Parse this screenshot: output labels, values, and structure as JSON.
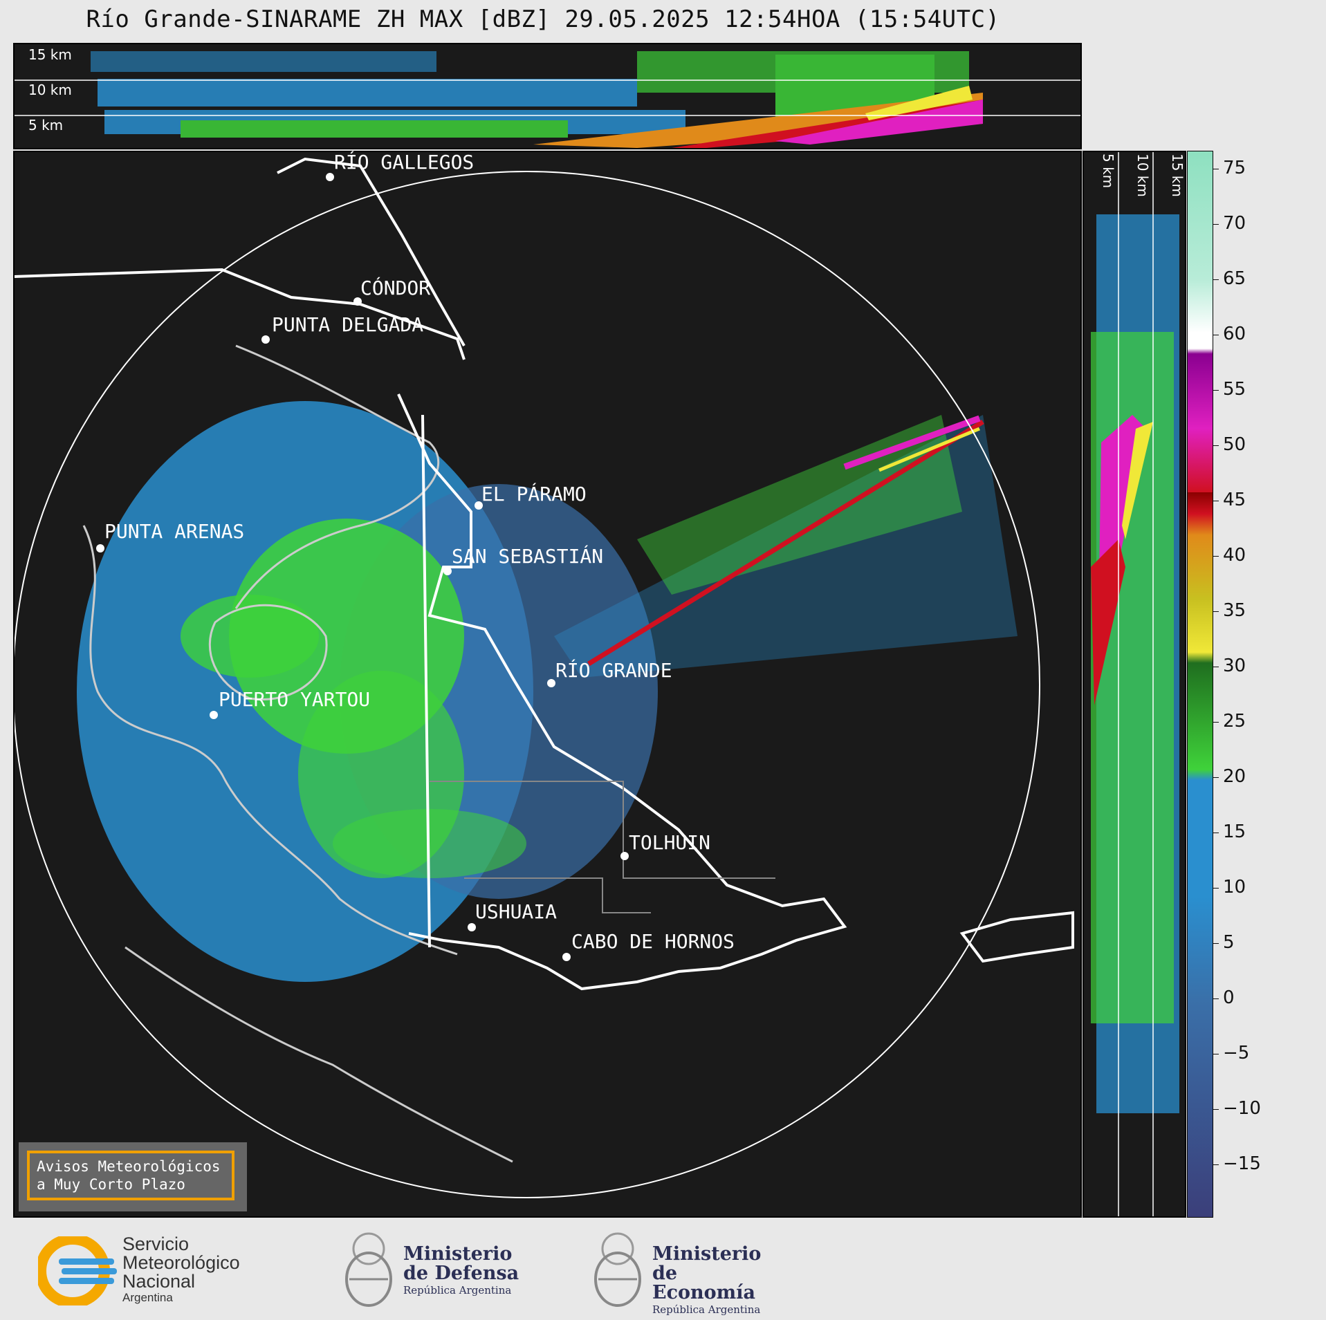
{
  "title": "Río Grande-SINARAME ZH MAX [dBZ] 29.05.2025 12:54HOA (15:54UTC)",
  "top_heights": [
    "15 km",
    "10 km",
    "5 km"
  ],
  "side_heights": [
    "5 km",
    "10 km",
    "15 km"
  ],
  "cities": [
    {
      "id": "rio-gallegos",
      "label": "RÍO GALLEGOS"
    },
    {
      "id": "condor",
      "label": "CÓNDOR"
    },
    {
      "id": "punta-delgada",
      "label": "PUNTA DELGADA"
    },
    {
      "id": "el-paramo",
      "label": "EL PÁRAMO"
    },
    {
      "id": "punta-arenas",
      "label": "PUNTA ARENAS"
    },
    {
      "id": "san-sebastian",
      "label": "SAN SEBASTIÁN"
    },
    {
      "id": "rio-grande",
      "label": "RÍO GRANDE"
    },
    {
      "id": "puerto-yartou",
      "label": "PUERTO YARTOU"
    },
    {
      "id": "tolhuin",
      "label": "TOLHUIN"
    },
    {
      "id": "ushuaia",
      "label": "USHUAIA"
    },
    {
      "id": "cabo-de-hornos",
      "label": "CABO DE HORNOS"
    }
  ],
  "colorbar": {
    "unit": "dBZ",
    "ticks": [
      "75",
      "70",
      "65",
      "60",
      "55",
      "50",
      "45",
      "40",
      "35",
      "30",
      "25",
      "20",
      "15",
      "10",
      "5",
      "0",
      "−5",
      "−10",
      "−15"
    ],
    "colors": {
      "low": "#3b3f7a",
      "blue": "#2a8fcf",
      "green": "#3fd23a",
      "dark_green": "#1f6e1f",
      "yellow": "#f0e838",
      "orange": "#e08a1a",
      "red": "#d01020",
      "dark_red": "#8a0000",
      "magenta": "#e020c0",
      "purple": "#8a0090",
      "white": "#ffffff",
      "mint": "#8ee0c0"
    }
  },
  "notice": {
    "line1": "Avisos Meteorológicos",
    "line2": "a Muy Corto Plazo"
  },
  "logos": {
    "smn": {
      "line1": "Servicio",
      "line2": "Meteorológico",
      "line3": "Nacional",
      "line4": "Argentina"
    },
    "defensa": {
      "line1": "Ministerio",
      "line2": "de Defensa",
      "line3": "República Argentina"
    },
    "economia": {
      "line1": "Ministerio",
      "line2": "de Economía",
      "line3": "República Argentina"
    }
  }
}
